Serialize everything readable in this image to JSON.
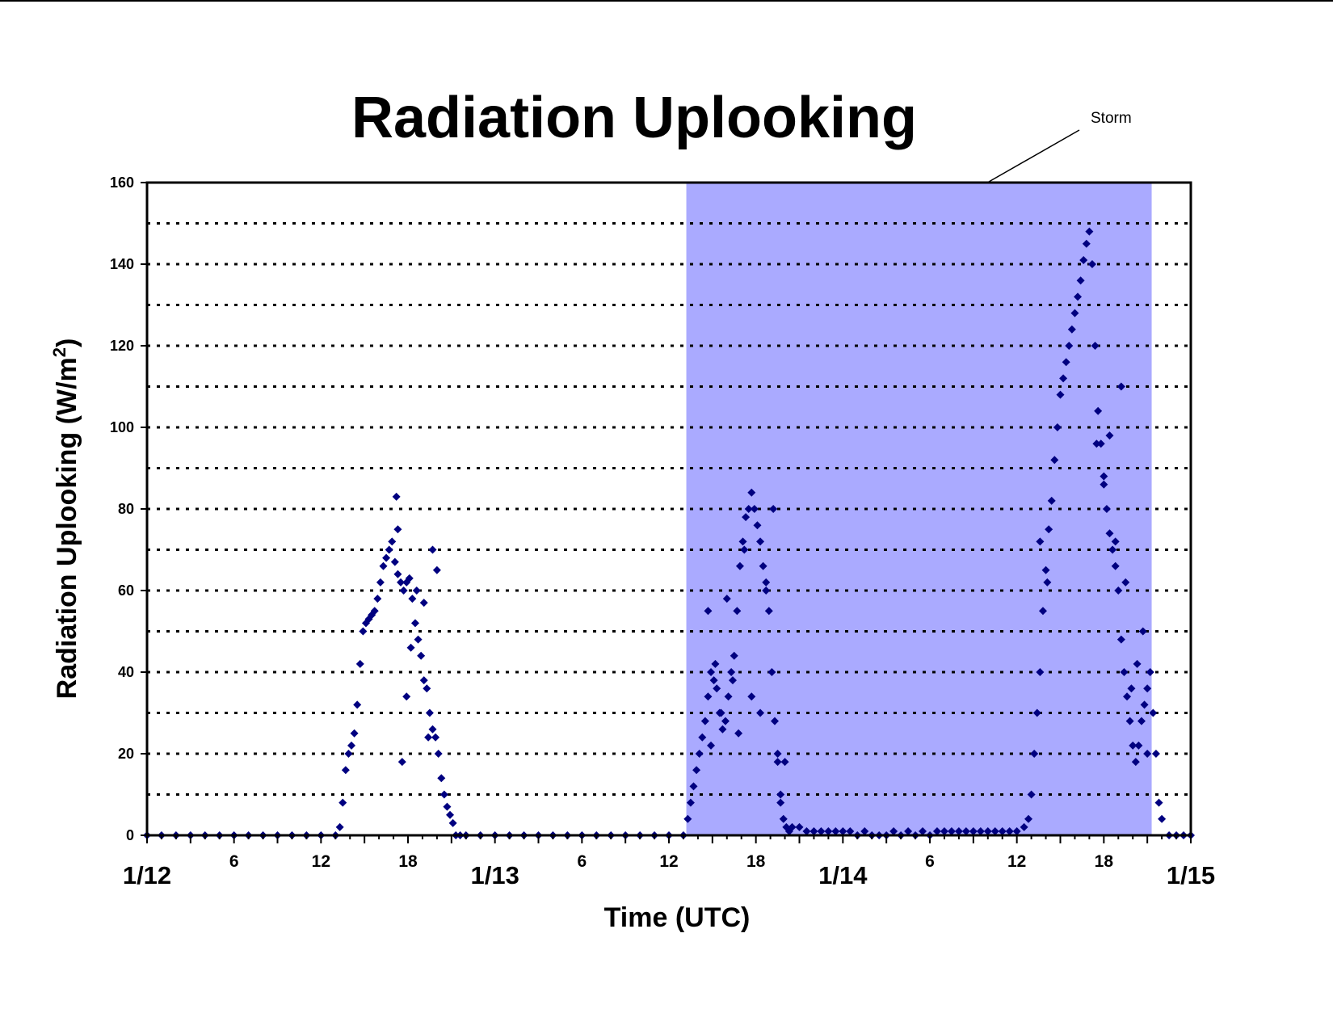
{
  "chart_data": {
    "type": "scatter",
    "title": "Radiation Uplooking",
    "xlabel": "Time (UTC)",
    "ylabel": "Radiation Uplooking (W/m",
    "ylabel_superscript": "2",
    "ylabel_close": ")",
    "x_unit": "hours since 1/12 00 UTC",
    "xlim": [
      0,
      72
    ],
    "ylim": [
      0,
      160
    ],
    "yticks": [
      "0",
      "20",
      "40",
      "60",
      "80",
      "100",
      "120",
      "140",
      "160"
    ],
    "x_day_labels": [
      {
        "x": 0,
        "label": "1/12"
      },
      {
        "x": 24,
        "label": "1/13"
      },
      {
        "x": 48,
        "label": "1/14"
      },
      {
        "x": 72,
        "label": "1/15"
      }
    ],
    "x_hour_labels": [
      {
        "x": 6,
        "label": "6"
      },
      {
        "x": 12,
        "label": "12"
      },
      {
        "x": 18,
        "label": "18"
      },
      {
        "x": 30,
        "label": "6"
      },
      {
        "x": 36,
        "label": "12"
      },
      {
        "x": 42,
        "label": "18"
      },
      {
        "x": 54,
        "label": "6"
      },
      {
        "x": 60,
        "label": "12"
      },
      {
        "x": 66,
        "label": "18"
      }
    ],
    "grid": "horizontal dotted every 10",
    "legend": "none",
    "shaded_region": {
      "x_start": 37.2,
      "x_end": 69.3,
      "color": "#aaaaff",
      "annotation": "Storm"
    },
    "series": [
      {
        "color": "#000080",
        "marker": "diamond",
        "x": [
          0,
          1,
          2,
          3,
          4,
          5,
          6,
          7,
          8,
          9,
          10,
          11,
          12,
          13,
          13.3,
          13.5,
          13.7,
          13.9,
          14.1,
          14.3,
          14.5,
          14.7,
          14.9,
          15.1,
          15.3,
          15.5,
          15.7,
          15.9,
          16.1,
          16.3,
          16.5,
          16.7,
          16.9,
          17.1,
          17.3,
          17.5,
          17.7,
          17.9,
          18.1,
          18.3,
          18.5,
          18.7,
          18.9,
          19.1,
          19.3,
          19.5,
          19.7,
          19.9,
          20.1,
          20.3,
          20.5,
          20.7,
          20.9,
          21.1,
          21.3,
          17.2,
          17.3,
          17.6,
          17.9,
          18.2,
          18.6,
          19.1,
          19.4,
          19.7,
          20.0,
          21.6,
          22,
          23,
          24,
          25,
          26,
          27,
          28,
          29,
          30,
          31,
          32,
          33,
          34,
          35,
          36,
          37,
          37.3,
          37.5,
          37.7,
          37.9,
          38.1,
          38.3,
          38.5,
          38.7,
          38.9,
          39.1,
          39.3,
          39.5,
          39.7,
          39.9,
          40.1,
          40.3,
          40.5,
          40.7,
          40.9,
          41.1,
          41.3,
          41.5,
          41.7,
          41.9,
          42.1,
          42.3,
          42.5,
          42.7,
          42.9,
          43.1,
          43.3,
          43.5,
          43.7,
          43.9,
          44.1,
          44.3,
          38.7,
          38.9,
          39.2,
          39.6,
          40.0,
          40.4,
          40.8,
          41.2,
          41.7,
          42.3,
          42.7,
          43.2,
          43.5,
          43.7,
          44.0,
          44.5,
          45,
          45.5,
          46,
          46.5,
          47,
          47.5,
          48,
          48.5,
          49,
          49.5,
          50,
          50.5,
          51,
          51.5,
          52,
          52.5,
          53,
          53.5,
          54,
          54.5,
          55,
          55.5,
          56,
          56.5,
          57,
          57.5,
          58,
          58.5,
          59,
          59.5,
          60,
          60.5,
          60.8,
          61.0,
          61.2,
          61.4,
          61.6,
          61.8,
          62.0,
          62.2,
          62.4,
          62.6,
          62.8,
          63.0,
          63.2,
          63.4,
          63.6,
          63.8,
          64.0,
          64.2,
          64.4,
          64.6,
          64.8,
          65.0,
          65.2,
          65.4,
          65.6,
          65.8,
          66.0,
          66.2,
          66.4,
          66.6,
          66.8,
          67.0,
          67.2,
          67.4,
          67.6,
          67.8,
          68.0,
          68.2,
          68.4,
          68.6,
          68.8,
          69.0,
          69.2,
          69.4,
          69.6,
          69.8,
          70.0,
          61.6,
          62.1,
          65.5,
          66.0,
          66.4,
          66.8,
          67.2,
          67.5,
          67.9,
          68.3,
          68.7,
          69.0,
          70.5,
          71,
          71.5,
          72
        ],
        "y": [
          0,
          0,
          0,
          0,
          0,
          0,
          0,
          0,
          0,
          0,
          0,
          0,
          0,
          0,
          2,
          8,
          16,
          20,
          22,
          25,
          32,
          42,
          50,
          52,
          53,
          54,
          55,
          58,
          62,
          66,
          68,
          70,
          72,
          67,
          64,
          62,
          60,
          62,
          63,
          58,
          52,
          48,
          44,
          38,
          36,
          30,
          26,
          24,
          20,
          14,
          10,
          7,
          5,
          3,
          0,
          83,
          75,
          18,
          34,
          46,
          60,
          57,
          24,
          70,
          65,
          0,
          0,
          0,
          0,
          0,
          0,
          0,
          0,
          0,
          0,
          0,
          0,
          0,
          0,
          0,
          0,
          0,
          4,
          8,
          12,
          16,
          20,
          24,
          28,
          34,
          40,
          38,
          36,
          30,
          26,
          28,
          34,
          40,
          44,
          55,
          66,
          72,
          78,
          80,
          84,
          80,
          76,
          72,
          66,
          60,
          55,
          40,
          28,
          20,
          8,
          4,
          2,
          1,
          55,
          22,
          42,
          30,
          58,
          38,
          25,
          70,
          34,
          30,
          62,
          80,
          18,
          10,
          18,
          2,
          2,
          1,
          1,
          1,
          1,
          1,
          1,
          1,
          0,
          1,
          0,
          0,
          0,
          1,
          0,
          1,
          0,
          1,
          0,
          1,
          1,
          1,
          1,
          1,
          1,
          1,
          1,
          1,
          1,
          1,
          1,
          2,
          4,
          10,
          20,
          30,
          40,
          55,
          65,
          75,
          82,
          92,
          100,
          108,
          112,
          116,
          120,
          124,
          128,
          132,
          136,
          141,
          145,
          148,
          140,
          120,
          104,
          96,
          88,
          80,
          74,
          70,
          66,
          60,
          48,
          40,
          34,
          28,
          22,
          18,
          22,
          28,
          32,
          36,
          40,
          30,
          20,
          8,
          4,
          72,
          62,
          96,
          86,
          98,
          72,
          110,
          62,
          36,
          42,
          50,
          20,
          0,
          0,
          0,
          0
        ]
      }
    ]
  }
}
